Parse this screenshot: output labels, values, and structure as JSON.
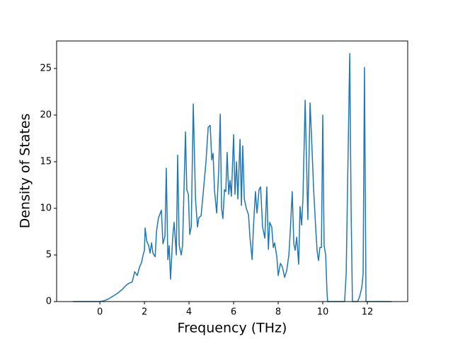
{
  "chart_data": {
    "type": "line",
    "xlabel": "Frequency (THz)",
    "ylabel": "Density of States",
    "xlim": [
      -1.94,
      13.81
    ],
    "ylim": [
      0,
      27.95
    ],
    "xticks": [
      0,
      2,
      4,
      6,
      8,
      10,
      12
    ],
    "yticks": [
      0,
      5,
      10,
      15,
      20,
      25
    ],
    "grid": false,
    "series": [
      {
        "name": "DOS",
        "color": "#1f77b4",
        "x": [
          -1.2,
          0,
          0.2,
          0.4,
          0.6,
          0.8,
          1.0,
          1.2,
          1.33,
          1.45,
          1.56,
          1.68,
          1.78,
          1.87,
          1.94,
          2.0,
          2.03,
          2.1,
          2.19,
          2.25,
          2.32,
          2.38,
          2.48,
          2.54,
          2.63,
          2.76,
          2.83,
          2.92,
          2.98,
          3.05,
          3.11,
          3.17,
          3.27,
          3.33,
          3.43,
          3.49,
          3.56,
          3.65,
          3.71,
          3.84,
          3.9,
          3.97,
          4.03,
          4.1,
          4.19,
          4.29,
          4.38,
          4.44,
          4.54,
          4.63,
          4.76,
          4.86,
          4.95,
          5.02,
          5.08,
          5.14,
          5.24,
          5.33,
          5.4,
          5.46,
          5.52,
          5.59,
          5.65,
          5.71,
          5.78,
          5.84,
          5.9,
          6.0,
          6.06,
          6.13,
          6.19,
          6.29,
          6.35,
          6.41,
          6.48,
          6.57,
          6.67,
          6.73,
          6.83,
          6.89,
          6.98,
          7.05,
          7.14,
          7.21,
          7.3,
          7.4,
          7.49,
          7.56,
          7.62,
          7.71,
          7.78,
          7.84,
          7.94,
          8.0,
          8.1,
          8.19,
          8.29,
          8.38,
          8.48,
          8.54,
          8.63,
          8.7,
          8.76,
          8.83,
          8.92,
          8.98,
          9.05,
          9.11,
          9.21,
          9.27,
          9.33,
          9.43,
          9.49,
          9.59,
          9.68,
          9.75,
          9.81,
          9.87,
          9.94,
          10.0,
          10.06,
          10.13,
          10.19,
          10.22,
          10.98,
          11.05,
          11.11,
          11.21,
          11.27,
          11.33,
          11.56,
          11.65,
          11.75,
          11.81,
          11.87,
          11.94,
          13.08
        ],
        "values": [
          0,
          0,
          0.1,
          0.3,
          0.6,
          0.9,
          1.3,
          1.8,
          2.0,
          2.1,
          3.2,
          2.8,
          3.7,
          4.2,
          5.0,
          5.5,
          7.9,
          6.5,
          6.0,
          5.2,
          6.3,
          5.2,
          4.8,
          7.5,
          9.0,
          9.8,
          6.2,
          7.0,
          14.3,
          4.5,
          6.0,
          2.4,
          7.0,
          8.5,
          5.0,
          15.7,
          6.0,
          5.0,
          6.0,
          18.2,
          12.0,
          11.5,
          7.2,
          8.0,
          21.2,
          11.0,
          8.0,
          9.0,
          9.2,
          11.5,
          15.0,
          18.7,
          18.9,
          15.2,
          15.9,
          12.0,
          9.5,
          14.0,
          20.1,
          10.0,
          8.9,
          12.0,
          11.8,
          16.0,
          11.5,
          13.0,
          11.3,
          17.9,
          11.5,
          15.0,
          11.0,
          17.4,
          10.3,
          16.7,
          11.0,
          10.0,
          9.3,
          7.0,
          4.5,
          8.0,
          11.8,
          9.5,
          12.0,
          12.3,
          8.0,
          6.8,
          12.3,
          5.6,
          8.5,
          8.0,
          5.8,
          6.3,
          4.8,
          2.8,
          4.1,
          3.7,
          2.6,
          3.3,
          5.0,
          7.5,
          11.8,
          6.2,
          5.5,
          6.9,
          4.0,
          10.2,
          8.2,
          11.0,
          21.6,
          15.0,
          8.8,
          21.3,
          18.0,
          12.0,
          8.0,
          5.3,
          4.4,
          5.8,
          5.8,
          20.0,
          6.0,
          5.0,
          1.0,
          0,
          0,
          3.0,
          12.0,
          26.6,
          10.0,
          0,
          0,
          0.5,
          1.5,
          3.0,
          25.1,
          0,
          0
        ]
      }
    ]
  }
}
